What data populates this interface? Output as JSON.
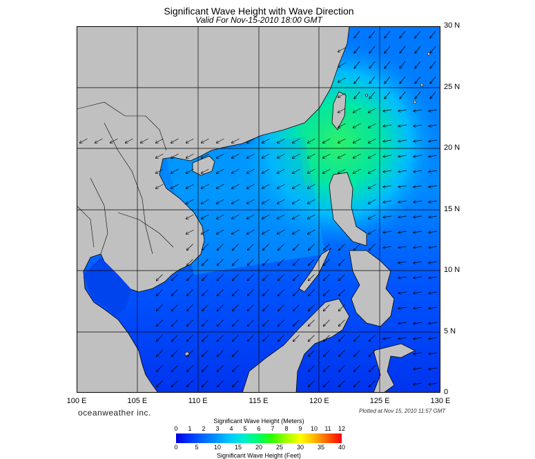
{
  "title": "Significant Wave Height with Wave Direction",
  "subtitle": "Valid For Nov-15-2010 18:00 GMT",
  "lat_labels": [
    "30 N",
    "25 N",
    "20 N",
    "15 N",
    "10 N",
    "5 N",
    "0"
  ],
  "lon_labels": [
    "100 E",
    "105 E",
    "110 E",
    "115 E",
    "120 E",
    "125 E",
    "130 E"
  ],
  "map_extent": {
    "lon": [
      100,
      130
    ],
    "lat": [
      0,
      30
    ]
  },
  "brand": "oceanweather inc.",
  "plotted": "Plotted at Nov 15, 2010 11:57 GMT",
  "legend": {
    "meters_title": "Significant Wave Height (Meters)",
    "feet_title": "Significant Wave Height (Feet)",
    "meters_ticks": [
      "0",
      "1",
      "2",
      "3",
      "4",
      "5",
      "6",
      "7",
      "8",
      "9",
      "10",
      "11",
      "12"
    ],
    "feet_ticks": [
      "0",
      "5",
      "10",
      "15",
      "20",
      "25",
      "30",
      "35",
      "40"
    ]
  },
  "colors": {
    "land": "#c0c0c0",
    "deep_blue": "#0022ee",
    "mid_blue": "#0055ff",
    "light_blue": "#0099ff",
    "cyan": "#00ccff",
    "green": "#33ff66",
    "grid": "#000000"
  },
  "wave_direction": "northeast monsoon swell, arrows pointing southwest"
}
